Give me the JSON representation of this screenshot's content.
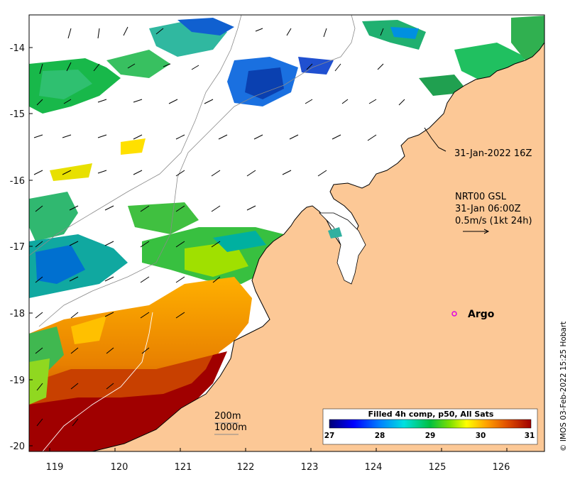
{
  "map": {
    "lon_range": [
      118.6,
      126.85
    ],
    "lat_range": [
      -20.1,
      -13.5
    ],
    "lon_ticks": [
      "119",
      "120",
      "121",
      "122",
      "123",
      "124",
      "125",
      "126"
    ],
    "lat_ticks": [
      "-14",
      "-15",
      "-16",
      "-17",
      "-18",
      "-19",
      "-20"
    ],
    "land_color": "#fcc896",
    "ocean_color": "#ffffff"
  },
  "annotations": {
    "track_time": "31-Jan-2022 16Z",
    "current_model": "NRT00 GSL",
    "current_time": "31-Jan 06:00Z",
    "current_scale": "0.5m/s (1kt 24h)",
    "argo_label": "Argo",
    "isobath_200": "200m",
    "isobath_1000": "1000m"
  },
  "colorbar": {
    "title": "Filled 4h comp, p50, All Sats",
    "min": 27,
    "max": 31,
    "ticks": [
      "27",
      "28",
      "29",
      "30",
      "31"
    ]
  },
  "credit": "© IMOS 03-Feb-2022 15:25 Hobart"
}
